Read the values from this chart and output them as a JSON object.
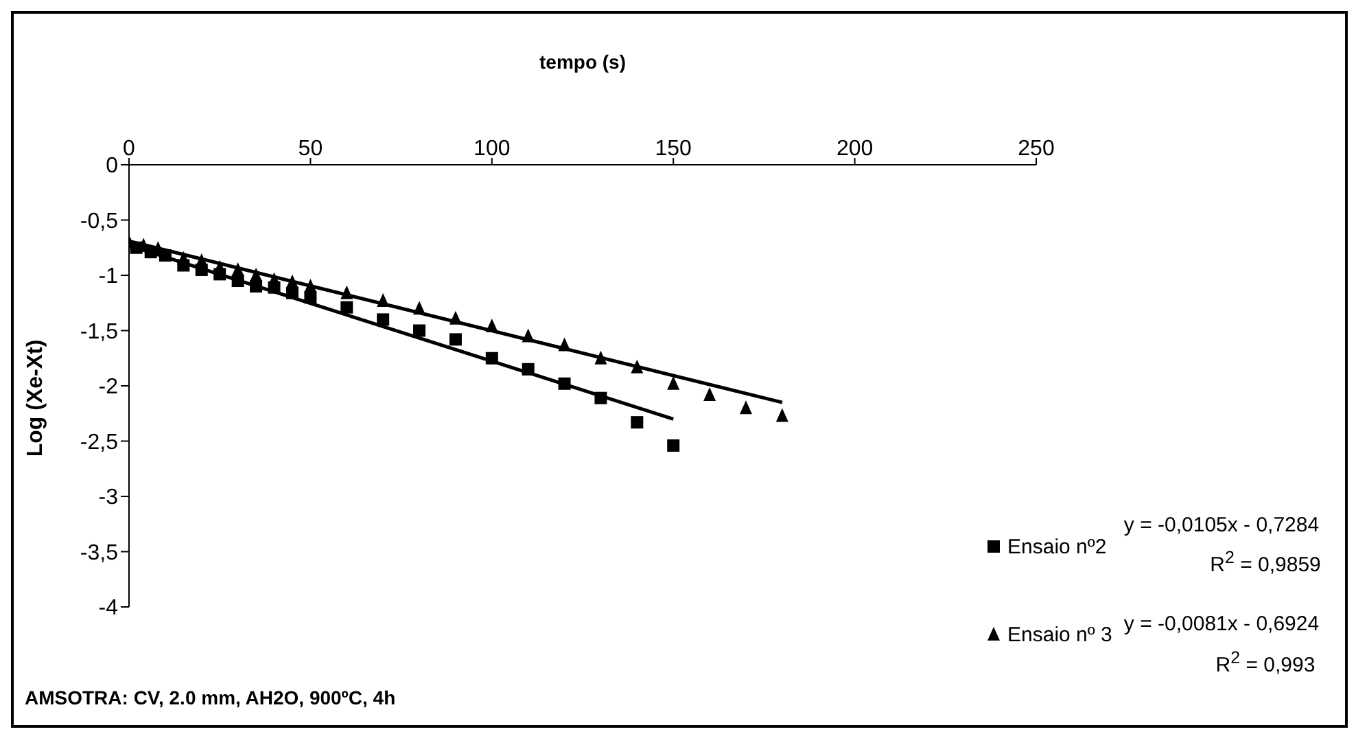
{
  "chart_data": {
    "type": "scatter",
    "xlabel": "tempo (s)",
    "ylabel": "Log (Xe-Xt)",
    "xlim": [
      0,
      250
    ],
    "xticks": [
      0,
      50,
      100,
      150,
      200,
      250
    ],
    "ylim": [
      -4,
      0
    ],
    "yticks": [
      0,
      {
        "value": -0.5,
        "label": "-0,5"
      },
      -1,
      {
        "value": -1.5,
        "label": "-1,5"
      },
      -2,
      {
        "value": -2.5,
        "label": "-2,5"
      },
      -3,
      {
        "value": -3.5,
        "label": "-3,5"
      },
      -4
    ],
    "grid": false,
    "legend": "right",
    "series": [
      {
        "name": "Ensaio nº2",
        "color": "#000000",
        "marker": "square",
        "x": [
          2,
          6,
          10,
          15,
          20,
          25,
          30,
          35,
          40,
          45,
          50,
          60,
          70,
          80,
          90,
          100,
          110,
          120,
          130,
          140,
          150
        ],
        "values": [
          -0.75,
          -0.79,
          -0.82,
          -0.91,
          -0.95,
          -0.99,
          -1.05,
          -1.1,
          -1.11,
          -1.16,
          -1.2,
          -1.29,
          -1.4,
          -1.5,
          -1.58,
          -1.75,
          -1.85,
          -1.98,
          -2.11,
          -2.33,
          -2.54
        ]
      },
      {
        "name": "Ensaio nº 3",
        "color": "#000000",
        "marker": "triangle",
        "x": [
          0,
          4,
          8,
          15,
          20,
          25,
          30,
          35,
          40,
          45,
          50,
          60,
          70,
          80,
          90,
          100,
          110,
          120,
          130,
          140,
          150,
          160,
          170,
          180
        ],
        "values": [
          -0.7,
          -0.73,
          -0.76,
          -0.85,
          -0.87,
          -0.93,
          -0.95,
          -1.0,
          -1.04,
          -1.06,
          -1.1,
          -1.16,
          -1.23,
          -1.3,
          -1.39,
          -1.46,
          -1.55,
          -1.63,
          -1.75,
          -1.83,
          -1.98,
          -2.08,
          -2.2,
          -2.27
        ]
      },
      {
        "type": "line",
        "color": "#000000",
        "marker": "none",
        "x": [
          0,
          150
        ],
        "values": [
          -0.73,
          -2.3
        ]
      },
      {
        "type": "line",
        "color": "#000000",
        "marker": "none",
        "x": [
          0,
          180
        ],
        "values": [
          -0.69,
          -2.15
        ]
      }
    ],
    "annotations": [
      "y = -0,0105x - 0,7284",
      "R$^{2}$ = 0,9859",
      "y = -0,0081x - 0,6924",
      "R$^{2}$ = 0,993",
      "AMSOTRA: CV, 2.0 mm, AH2O, 900ºC, 4h"
    ]
  }
}
